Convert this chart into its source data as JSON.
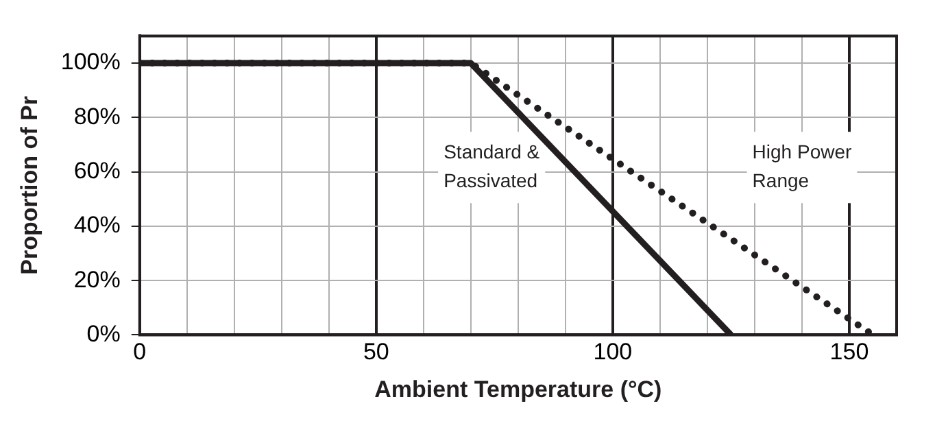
{
  "chart_data": {
    "type": "line",
    "xlabel": "Ambient Temperature (°C)",
    "ylabel": "Proportion of Pr",
    "series": [
      {
        "color": "#231f20",
        "line_style": "solid",
        "x": [
          0,
          70,
          125
        ],
        "values": [
          100,
          100,
          0
        ]
      },
      {
        "color": "#231f20",
        "line_style": "dotted",
        "x": [
          0,
          70,
          155
        ],
        "values": [
          100,
          100,
          0
        ]
      }
    ],
    "xlim": [
      0,
      160
    ],
    "xticks": [
      0,
      {
        "value": 10,
        "label": null
      },
      {
        "value": 20,
        "label": null
      },
      {
        "value": 30,
        "label": null
      },
      {
        "value": 40,
        "label": null
      },
      50,
      {
        "value": 60,
        "label": null
      },
      {
        "value": 70,
        "label": null
      },
      {
        "value": 80,
        "label": null
      },
      {
        "value": 90,
        "label": null
      },
      100,
      {
        "value": 110,
        "label": null
      },
      {
        "value": 120,
        "label": null
      },
      {
        "value": 130,
        "label": null
      },
      {
        "value": 140,
        "label": null
      },
      150
    ],
    "ylim": [
      0,
      110
    ],
    "yticks": [
      {
        "value": 0,
        "label": "0%"
      },
      {
        "value": 20,
        "label": "20%"
      },
      {
        "value": 40,
        "label": "40%"
      },
      {
        "value": 60,
        "label": "60%"
      },
      {
        "value": 80,
        "label": "80%"
      },
      {
        "value": 100,
        "label": "100%"
      }
    ],
    "grid": true,
    "marker": "none",
    "legend": false,
    "annotations": [
      "Standard & Passivated",
      "High Power Range"
    ]
  }
}
